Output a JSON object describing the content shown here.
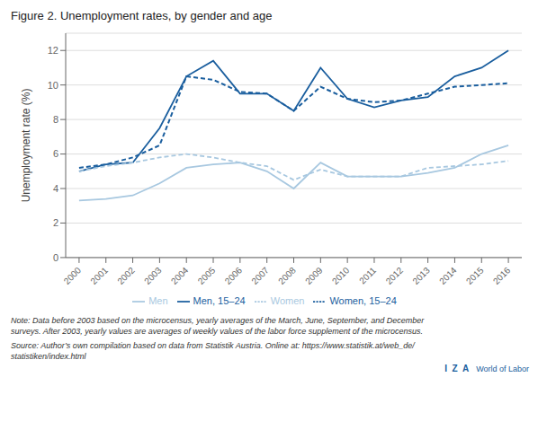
{
  "chart_data": {
    "type": "line",
    "title": "Figure 2. Unemployment rates, by gender and age",
    "y_label": "Unemployment rate (%)",
    "x": [
      2000,
      2001,
      2002,
      2003,
      2004,
      2005,
      2006,
      2007,
      2008,
      2009,
      2010,
      2011,
      2012,
      2013,
      2014,
      2015,
      2016
    ],
    "series": [
      {
        "name": "Men",
        "color": "#a8c8e0",
        "line_style": "solid",
        "values": [
          3.3,
          3.4,
          3.6,
          4.3,
          5.2,
          5.4,
          5.5,
          5.0,
          4.0,
          5.5,
          4.7,
          4.7,
          4.7,
          4.9,
          5.2,
          6.0,
          6.5
        ]
      },
      {
        "name": "Men, 15–24",
        "color": "#1a5e9e",
        "line_style": "solid",
        "values": [
          5.0,
          5.4,
          5.5,
          7.5,
          10.5,
          11.4,
          9.5,
          9.5,
          8.5,
          11.0,
          9.2,
          8.7,
          9.1,
          9.3,
          10.5,
          11.0,
          12.0
        ]
      },
      {
        "name": "Women",
        "color": "#a8c8e0",
        "line_style": "dashed",
        "values": [
          5.0,
          5.3,
          5.5,
          5.8,
          6.0,
          5.8,
          5.5,
          5.3,
          4.5,
          5.1,
          4.7,
          4.7,
          4.7,
          5.2,
          5.3,
          5.4,
          5.6
        ]
      },
      {
        "name": "Women, 15–24",
        "color": "#1a5e9e",
        "line_style": "dashed",
        "values": [
          5.2,
          5.4,
          5.8,
          6.5,
          10.5,
          10.3,
          9.6,
          9.5,
          8.5,
          9.9,
          9.2,
          9.0,
          9.1,
          9.5,
          9.9,
          10.0,
          10.1
        ]
      }
    ],
    "xlim": [
      1999.5,
      2016.5
    ],
    "xticks": [
      2000,
      2001,
      2002,
      2003,
      2004,
      2005,
      2006,
      2007,
      2008,
      2009,
      2010,
      2011,
      2012,
      2013,
      2014,
      2015,
      2016
    ],
    "ylim": [
      0,
      13
    ],
    "yticks": [
      0,
      2,
      4,
      6,
      8,
      10,
      12
    ],
    "grid": true,
    "legend": "bottom",
    "annotations": [
      "Note: Data before 2003 based on the microcensus, yearly averages of the March, June, September, and December\nsurveys. After 2003, yearly values are averages of weekly values of the labor force supplement of the microcensus.",
      "Source: Author’s own compilation based on data from Statistik Austria. Online at: https://www.statistik.at/web_de/\nstatistiken/index.html",
      "I  Z  A",
      "World of Labor"
    ]
  }
}
